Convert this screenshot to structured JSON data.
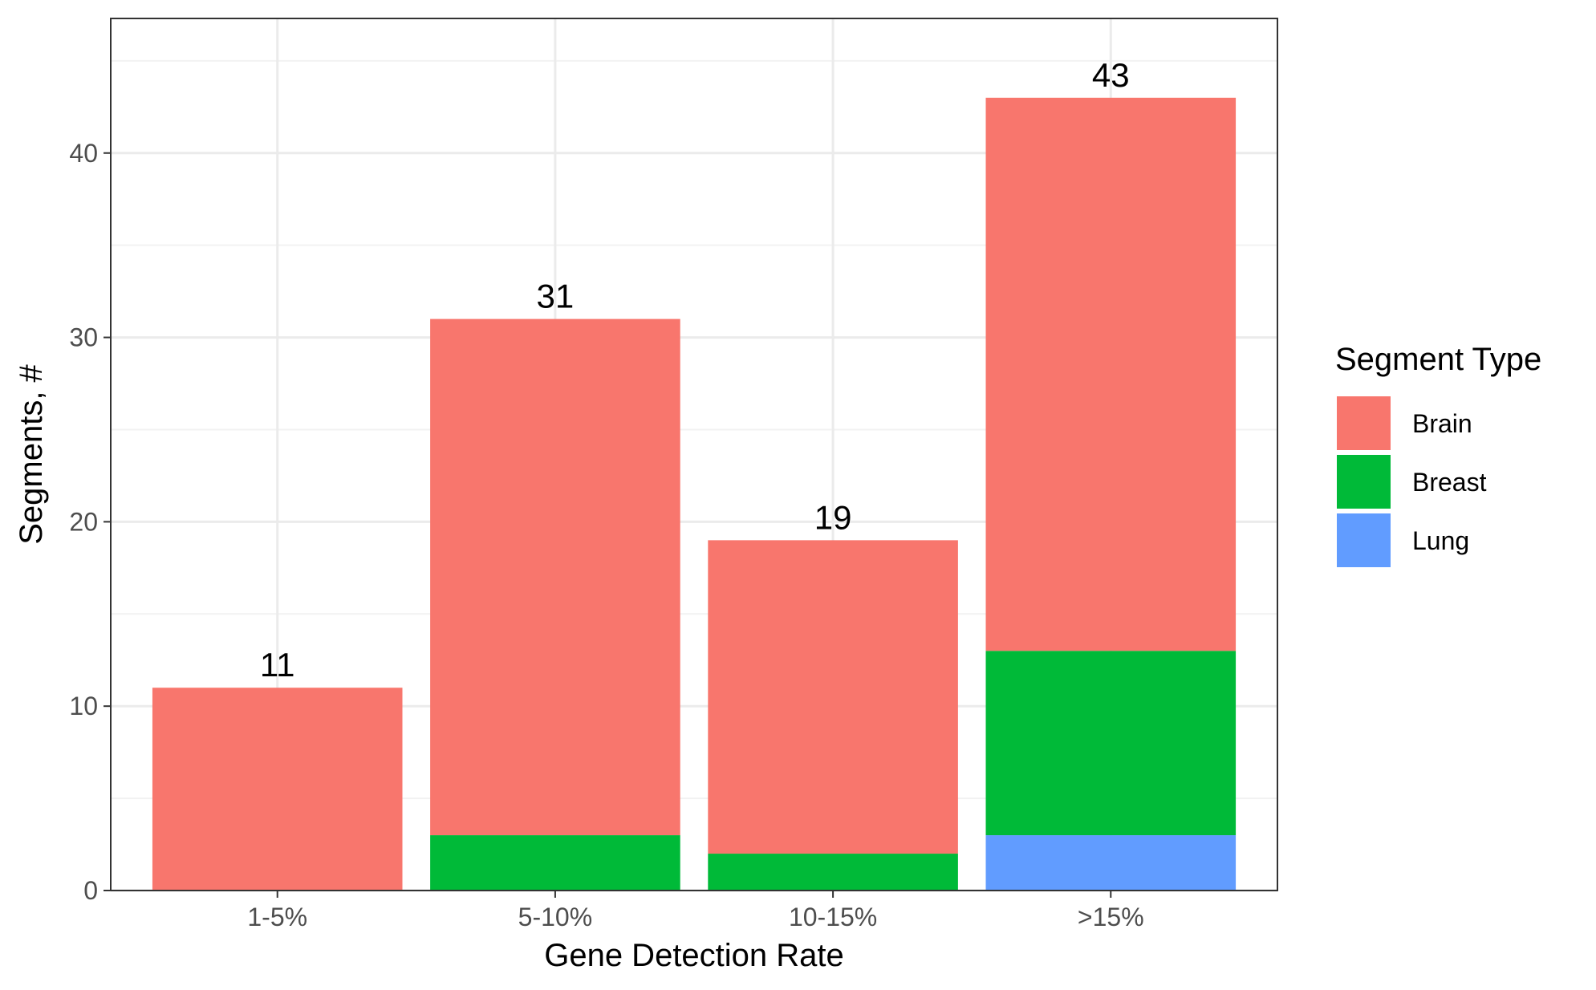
{
  "chart_data": {
    "type": "bar",
    "stacked": true,
    "xlabel": "Gene Detection Rate",
    "ylabel": "Segments, #",
    "categories": [
      "1-5%",
      "5-10%",
      "10-15%",
      ">15%"
    ],
    "series": [
      {
        "name": "Lung",
        "color": "#619CFF",
        "values": [
          0,
          0,
          0,
          3
        ]
      },
      {
        "name": "Breast",
        "color": "#00BA38",
        "values": [
          0,
          3,
          2,
          10
        ]
      },
      {
        "name": "Brain",
        "color": "#F8766D",
        "values": [
          11,
          28,
          17,
          30
        ]
      }
    ],
    "totals": [
      11,
      31,
      19,
      43
    ],
    "totals_labels": [
      "11",
      "31",
      "19",
      "43"
    ],
    "ylim": [
      0,
      47.3
    ],
    "yticks": [
      0,
      10,
      20,
      30,
      40
    ],
    "ytick_labels": [
      "0",
      "10",
      "20",
      "30",
      "40"
    ],
    "grid": true,
    "legend": {
      "title": "Segment Type",
      "position": "right",
      "items": [
        {
          "label": "Brain",
          "color": "#F8766D"
        },
        {
          "label": "Breast",
          "color": "#00BA38"
        },
        {
          "label": "Lung",
          "color": "#619CFF"
        }
      ]
    }
  }
}
